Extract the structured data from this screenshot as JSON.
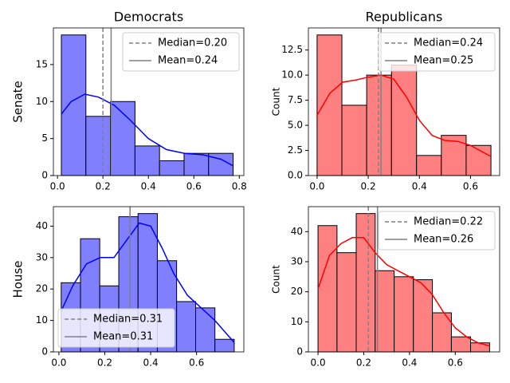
{
  "chart_data": [
    {
      "type": "histogram",
      "title": "Democrats",
      "y_label": "Senate",
      "bins": [
        0.017,
        0.125,
        0.233,
        0.341,
        0.449,
        0.557,
        0.665,
        0.773
      ],
      "counts": [
        19,
        8,
        10,
        4,
        2,
        3,
        3
      ],
      "color": "#8080ff",
      "edge_color": "#000000",
      "kde": {
        "color": "#0000ff",
        "x": [
          0.017,
          0.06,
          0.12,
          0.18,
          0.25,
          0.32,
          0.4,
          0.48,
          0.56,
          0.64,
          0.72,
          0.773
        ],
        "y": [
          8.3,
          10,
          11,
          10.6,
          9.5,
          7.5,
          5,
          3.5,
          3,
          2.8,
          2.2,
          1.3
        ]
      },
      "vlines": [
        {
          "name": "Median=0.20",
          "value": 0.2,
          "style": "dashed",
          "color": "#808080"
        },
        {
          "name": "Mean=0.24",
          "value": 0.236,
          "style": "solid",
          "color": "#808080"
        }
      ],
      "legend": "upper right",
      "xlim": [
        -0.018,
        0.82
      ],
      "xticks": [
        {
          "value": 0,
          "label": "0.0"
        },
        0.2,
        0.4,
        0.6,
        0.8
      ],
      "ylim": [
        0,
        19.95
      ],
      "yticks": [
        0,
        5,
        10,
        15
      ]
    },
    {
      "type": "histogram",
      "title": "Republicans",
      "y_label": "Count",
      "bins": [
        0,
        0.097,
        0.194,
        0.291,
        0.389,
        0.486,
        0.583,
        0.68
      ],
      "counts": [
        14,
        7,
        10,
        11,
        2,
        4,
        3
      ],
      "color": "#ff8080",
      "edge_color": "#000000",
      "kde": {
        "color": "#ff0000",
        "x": [
          0,
          0.05,
          0.1,
          0.15,
          0.2,
          0.25,
          0.3,
          0.35,
          0.4,
          0.45,
          0.5,
          0.55,
          0.6,
          0.68
        ],
        "y": [
          6,
          8.2,
          9.3,
          9.5,
          9.8,
          10,
          9.6,
          7.8,
          5.5,
          4,
          3.5,
          3.4,
          3,
          1.9
        ]
      },
      "vlines": [
        {
          "name": "Median=0.24",
          "value": 0.24,
          "style": "dashed",
          "color": "#808080"
        },
        {
          "name": "Mean=0.25",
          "value": 0.25,
          "style": "solid",
          "color": "#808080"
        }
      ],
      "legend": "upper right",
      "xlim": [
        -0.034,
        0.714
      ],
      "xticks": [
        {
          "value": 0,
          "label": "0.0"
        },
        0.2,
        0.4,
        0.6
      ],
      "ylim": [
        0,
        14.7
      ],
      "yticks": [
        {
          "value": 0,
          "label": "0.0"
        },
        2.5,
        {
          "value": 5,
          "label": "5.0"
        },
        7.5,
        {
          "value": 10,
          "label": "10.0"
        },
        12.5
      ]
    },
    {
      "type": "histogram",
      "y_label": "House",
      "bins": [
        0.01,
        0.094,
        0.178,
        0.261,
        0.345,
        0.429,
        0.513,
        0.596,
        0.68,
        0.764
      ],
      "counts": [
        22,
        36,
        21,
        43,
        44,
        29,
        16,
        14,
        4
      ],
      "color": "#8080ff",
      "edge_color": "#000000",
      "kde": {
        "color": "#0000ff",
        "x": [
          0.01,
          0.06,
          0.12,
          0.18,
          0.24,
          0.3,
          0.35,
          0.4,
          0.45,
          0.5,
          0.56,
          0.62,
          0.68,
          0.764
        ],
        "y": [
          13,
          21,
          28,
          30,
          30,
          36,
          41,
          40,
          33,
          25,
          18,
          14,
          10,
          3
        ]
      },
      "vlines": [
        {
          "name": "Median=0.31",
          "value": 0.31,
          "style": "dashed",
          "color": "#808080"
        },
        {
          "name": "Mean=0.31",
          "value": 0.31,
          "style": "solid",
          "color": "#808080"
        }
      ],
      "legend": "lower left",
      "xlim": [
        -0.024,
        0.806
      ],
      "xticks": [
        {
          "value": 0,
          "label": "0.0"
        },
        0.2,
        0.4,
        0.6
      ],
      "ylim": [
        0,
        46.2
      ],
      "yticks": [
        0,
        10,
        20,
        30,
        40
      ]
    },
    {
      "type": "histogram",
      "y_label": "Count",
      "bins": [
        0,
        0.083,
        0.167,
        0.25,
        0.333,
        0.417,
        0.5,
        0.583,
        0.667,
        0.75
      ],
      "counts": [
        42,
        33,
        46,
        27,
        25,
        24,
        13,
        5,
        3
      ],
      "color": "#ff8080",
      "edge_color": "#000000",
      "kde": {
        "color": "#ff0000",
        "x": [
          0,
          0.05,
          0.1,
          0.15,
          0.2,
          0.25,
          0.3,
          0.35,
          0.4,
          0.45,
          0.5,
          0.55,
          0.6,
          0.65,
          0.7,
          0.75
        ],
        "y": [
          21,
          32,
          36,
          38,
          38,
          33,
          29,
          27,
          25,
          23,
          19,
          13,
          8,
          5,
          3,
          2
        ]
      },
      "vlines": [
        {
          "name": "Median=0.22",
          "value": 0.22,
          "style": "dashed",
          "color": "#808080"
        },
        {
          "name": "Mean=0.26",
          "value": 0.26,
          "style": "solid",
          "color": "#808080"
        }
      ],
      "legend": "upper right",
      "xlim": [
        -0.042,
        0.794
      ],
      "xticks": [
        {
          "value": 0,
          "label": "0.0"
        },
        0.2,
        0.4,
        0.6
      ],
      "ylim": [
        0,
        48.3
      ],
      "yticks": [
        0,
        10,
        20,
        30,
        40
      ]
    }
  ]
}
